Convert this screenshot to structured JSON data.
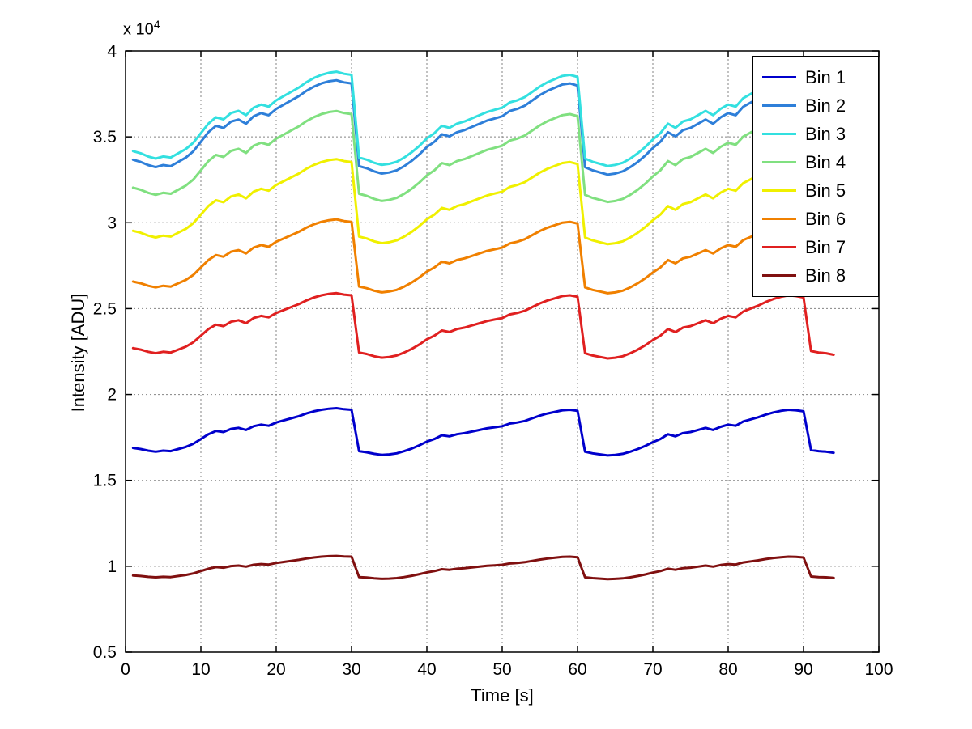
{
  "figure": {
    "background": "#FFFFFF",
    "exponent_base": "x 10",
    "exponent_power": "4"
  },
  "chart_data": {
    "type": "line",
    "title": "",
    "xlabel": "Time [s]",
    "ylabel": "Intensity [ADU]",
    "xlim": [
      0,
      100
    ],
    "ylim": [
      5000,
      40000
    ],
    "grid": true,
    "legend_position": "top-right",
    "x_ticks": [
      0,
      10,
      20,
      30,
      40,
      50,
      60,
      70,
      80,
      90,
      100
    ],
    "x_tick_labels": [
      "0",
      "10",
      "20",
      "30",
      "40",
      "50",
      "60",
      "70",
      "80",
      "90",
      "100"
    ],
    "y_ticks": [
      5000,
      10000,
      15000,
      20000,
      25000,
      30000,
      35000,
      40000
    ],
    "y_tick_labels": [
      "0.5",
      "1",
      "1.5",
      "2",
      "2.5",
      "3",
      "3.5",
      "4"
    ],
    "y_axis_multiplier": 10000,
    "x_start": 1,
    "x_step": 1,
    "x_end": 94,
    "n_points": 94,
    "values_formula": "y[i] = y_base + y_scale * waveform[i]",
    "waveform": [
      0.16,
      0.14,
      0.11,
      0.09,
      0.11,
      0.1,
      0.14,
      0.18,
      0.24,
      0.33,
      0.42,
      0.48,
      0.46,
      0.52,
      0.54,
      0.5,
      0.57,
      0.6,
      0.58,
      0.64,
      0.68,
      0.72,
      0.76,
      0.81,
      0.85,
      0.88,
      0.9,
      0.91,
      0.89,
      0.88,
      0.1,
      0.08,
      0.05,
      0.03,
      0.04,
      0.06,
      0.1,
      0.15,
      0.21,
      0.28,
      0.33,
      0.4,
      0.38,
      0.42,
      0.44,
      0.47,
      0.5,
      0.53,
      0.55,
      0.57,
      0.62,
      0.64,
      0.67,
      0.72,
      0.77,
      0.81,
      0.84,
      0.87,
      0.88,
      0.86,
      0.09,
      0.06,
      0.04,
      0.02,
      0.03,
      0.05,
      0.09,
      0.14,
      0.2,
      0.27,
      0.33,
      0.42,
      0.38,
      0.44,
      0.46,
      0.5,
      0.54,
      0.5,
      0.56,
      0.6,
      0.58,
      0.66,
      0.7,
      0.74,
      0.79,
      0.83,
      0.86,
      0.88,
      0.87,
      0.85,
      0.12,
      0.1,
      0.09,
      0.07
    ],
    "series": [
      {
        "name": "Bin 1",
        "color": "#0000CC",
        "y_base": 16390,
        "y_scale": 3090,
        "y_plot_range": [
          16450,
          19200
        ]
      },
      {
        "name": "Bin 2",
        "color": "#2E7FD9",
        "y_base": 32680,
        "y_scale": 6170,
        "y_plot_range": [
          32800,
          38300
        ]
      },
      {
        "name": "Bin 3",
        "color": "#33E0E0",
        "y_base": 33180,
        "y_scale": 6170,
        "y_plot_range": [
          33300,
          38800
        ]
      },
      {
        "name": "Bin 4",
        "color": "#80E080",
        "y_base": 31090,
        "y_scale": 5950,
        "y_plot_range": [
          31210,
          36500
        ]
      },
      {
        "name": "Bin 5",
        "color": "#F0F000",
        "y_base": 28640,
        "y_scale": 5560,
        "y_plot_range": [
          28750,
          33700
        ]
      },
      {
        "name": "Bin 6",
        "color": "#F08000",
        "y_base": 25800,
        "y_scale": 4830,
        "y_plot_range": [
          25900,
          30200
        ]
      },
      {
        "name": "Bin 7",
        "color": "#E02020",
        "y_base": 22015,
        "y_scale": 4270,
        "y_plot_range": [
          22100,
          25900
        ]
      },
      {
        "name": "Bin 8",
        "color": "#801010",
        "y_base": 9220,
        "y_scale": 1520,
        "y_plot_range": [
          9250,
          10600
        ]
      }
    ]
  }
}
